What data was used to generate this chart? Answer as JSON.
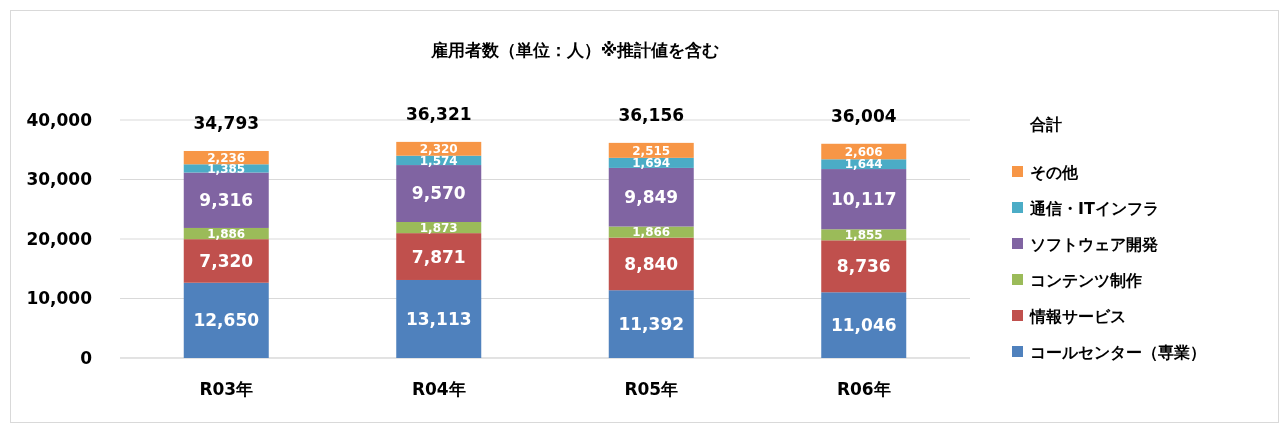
{
  "chart_data": {
    "type": "bar",
    "title": "雇用者数（単位：人）※推計値を含む",
    "stacked": true,
    "categories": [
      "R03年",
      "R04年",
      "R05年",
      "R06年"
    ],
    "series": [
      {
        "name": "コールセンター（専業）",
        "color": "#4f81bd",
        "values": [
          12650,
          13113,
          11392,
          11046
        ],
        "value_labels": [
          "12,650",
          "13,113",
          "11,392",
          "11,046"
        ]
      },
      {
        "name": "情報サービス",
        "color": "#c0504d",
        "values": [
          7320,
          7871,
          8840,
          8736
        ],
        "value_labels": [
          "7,320",
          "7,871",
          "8,840",
          "8,736"
        ]
      },
      {
        "name": "コンテンツ制作",
        "color": "#9bbb59",
        "values": [
          1886,
          1873,
          1866,
          1855
        ],
        "value_labels": [
          "1,886",
          "1,873",
          "1,866",
          "1,855"
        ]
      },
      {
        "name": "ソフトウェア開発",
        "color": "#8064a2",
        "values": [
          9316,
          9570,
          9849,
          10117
        ],
        "value_labels": [
          "9,316",
          "9,570",
          "9,849",
          "10,117"
        ]
      },
      {
        "name": "通信・ITインフラ",
        "color": "#4bacc6",
        "values": [
          1385,
          1574,
          1694,
          1644
        ],
        "value_labels": [
          "1,385",
          "1,574",
          "1,694",
          "1,644"
        ]
      },
      {
        "name": "その他",
        "color": "#f79646",
        "values": [
          2236,
          2320,
          2515,
          2606
        ],
        "value_labels": [
          "2,236",
          "2,320",
          "2,515",
          "2,606"
        ]
      }
    ],
    "ylim": [
      0,
      40000
    ],
    "yticks": [
      {
        "value": 0,
        "label": "0"
      },
      {
        "value": 10000,
        "label": "10,000"
      },
      {
        "value": 20000,
        "label": "20,000"
      },
      {
        "value": 30000,
        "label": "30,000"
      },
      {
        "value": 40000,
        "label": "40,000"
      }
    ],
    "grid": "y",
    "legend": "right",
    "legend_title": "合計",
    "totals": [
      "34,793",
      "36,321",
      "36,156",
      "36,004"
    ]
  }
}
